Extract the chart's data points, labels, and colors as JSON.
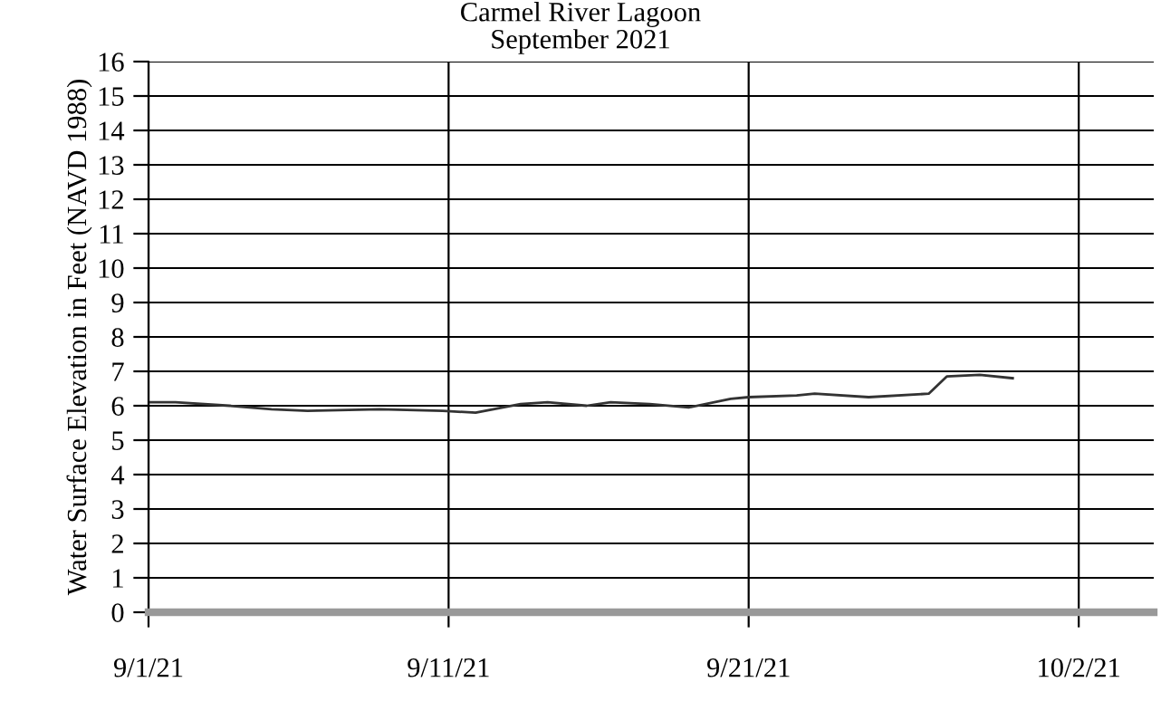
{
  "chart_data": {
    "type": "line",
    "title": "Carmel River Lagoon",
    "subtitle": "September 2021",
    "ylabel": "Water Surface Elevation in Feet (NAVD 1988)",
    "x": [
      "2021-09-01T00:00",
      "2021-09-01T21:36",
      "2021-09-03T16:48",
      "2021-09-05T02:24",
      "2021-09-06T07:12",
      "2021-09-08T16:48",
      "2021-09-10T19:12",
      "2021-09-11T21:36",
      "2021-09-13T09:36",
      "2021-09-14T07:12",
      "2021-09-15T14:24",
      "2021-09-16T09:36",
      "2021-09-17T16:48",
      "2021-09-19T00:00",
      "2021-09-20T09:36",
      "2021-09-21T00:00",
      "2021-09-22T14:24",
      "2021-09-23T04:48",
      "2021-09-25T00:00",
      "2021-09-27T00:00",
      "2021-09-27T14:24",
      "2021-09-28T16:48",
      "2021-09-29T19:12"
    ],
    "series": [
      {
        "color": "#333333",
        "values": [
          6.1,
          6.1,
          6.0,
          5.9,
          5.85,
          5.9,
          5.85,
          5.8,
          6.05,
          6.1,
          6.0,
          6.1,
          6.05,
          5.95,
          6.2,
          6.25,
          6.3,
          6.35,
          6.25,
          6.35,
          6.85,
          6.9,
          6.8
        ]
      }
    ],
    "xlim": [
      "2021-09-01",
      "2021-10-04T12:00"
    ],
    "xticks": [
      {
        "value": "2021-09-01",
        "label": "9/1/21"
      },
      {
        "value": "2021-09-11",
        "label": "9/11/21"
      },
      {
        "value": "2021-09-21",
        "label": "9/21/21"
      },
      {
        "value": "2021-10-02",
        "label": "10/2/21"
      }
    ],
    "ylim": [
      0,
      16
    ],
    "yticks": [
      0,
      1,
      2,
      3,
      4,
      5,
      6,
      7,
      8,
      9,
      10,
      11,
      12,
      13,
      14,
      15,
      16
    ],
    "grid": true,
    "line_style": "solid",
    "marker": "none"
  }
}
